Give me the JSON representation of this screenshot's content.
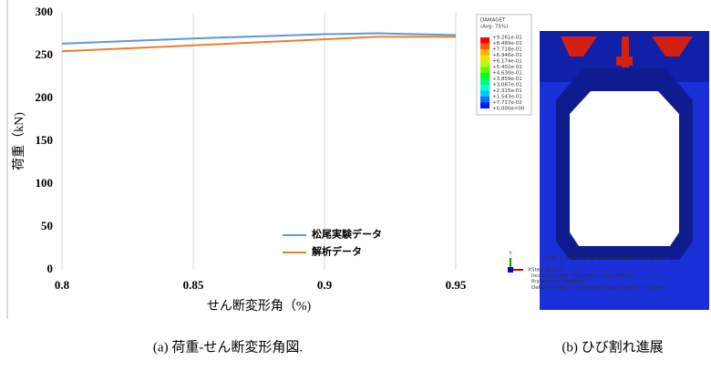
{
  "chart_data": {
    "type": "line",
    "x": [
      0.8,
      0.85,
      0.9,
      0.92,
      0.95
    ],
    "series": [
      {
        "name": "松尾実験データ",
        "color": "#5b9bd5",
        "values": [
          264,
          270,
          275,
          276,
          274
        ]
      },
      {
        "name": "解析データ",
        "color": "#ed7d31",
        "values": [
          255,
          262,
          269,
          272,
          272
        ]
      }
    ],
    "xlabel": "せん断変形角（%)",
    "ylabel": "荷重（kN)",
    "xlim": [
      0.8,
      0.95
    ],
    "xticks": [
      0.8,
      0.85,
      0.9,
      0.95
    ],
    "ylim": [
      0,
      300
    ],
    "yticks": [
      0,
      50,
      100,
      150,
      200,
      250,
      300
    ],
    "grid": "x",
    "legend": "lower-right"
  },
  "figure_b": {
    "legend_title": "DAMAGET",
    "legend_subtitle": "(Avg: 75%)",
    "legend_labels": [
      "+9.261e-01",
      "+8.489e-01",
      "+7.718e-01",
      "+6.946e-01",
      "+6.174e-01",
      "+5.402e-01",
      "+4.630e-01",
      "+3.859e-01",
      "+3.087e-01",
      "+2.315e-01",
      "+1.543e-01",
      "+7.717e-02",
      "+0.000e+00"
    ],
    "legend_colors": [
      "#ff0000",
      "#ff5a00",
      "#ffb400",
      "#f0e000",
      "#b4ff00",
      "#5aff00",
      "#00ff1e",
      "#00ff78",
      "#00ffd2",
      "#00c8ff",
      "#006eff",
      "#0014ff"
    ],
    "axis_labels": [
      "Y",
      "X"
    ],
    "info": [
      "ODB: ayueshu.odb    Abaqus/Standard 2021    Thu De",
      "Step: Step-2",
      "Increment     559: Step Time =    9.5145E-02",
      "Primary Var: DAMAGET",
      "Deformed Var: U   Deformation Scale Factor: +1.000e"
    ]
  },
  "captions": [
    "(a)  荷重-せん断変形角図.",
    "(b)  ひび割れ進展"
  ]
}
